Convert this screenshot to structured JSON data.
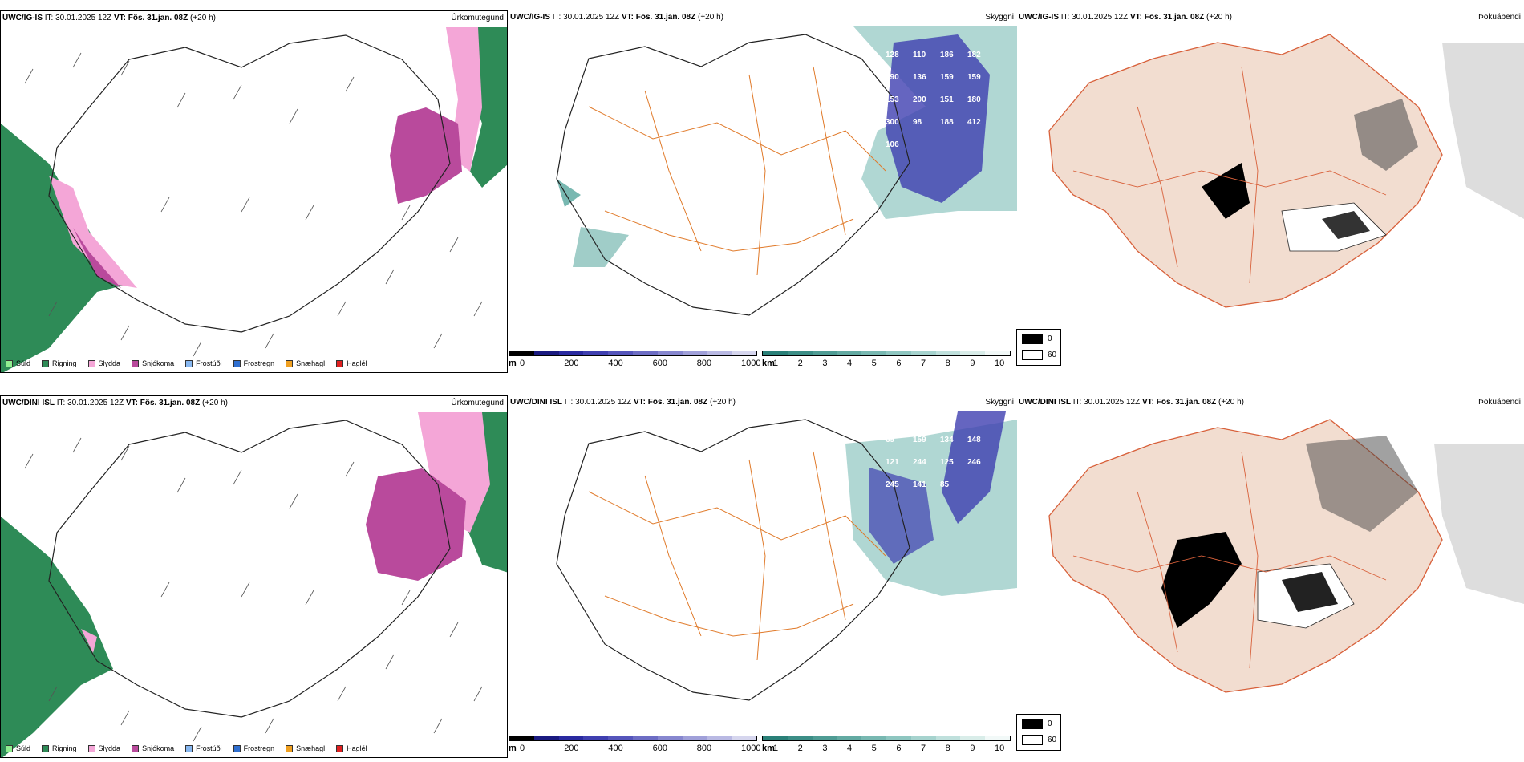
{
  "rows": [
    {
      "model": "UWC/IG-IS",
      "it_label": "IT:",
      "it_value": "30.01.2025 12Z",
      "vt_label": "VT:",
      "vt_value": "Fös. 31.jan. 08Z",
      "lead": "(+20 h)",
      "panels": [
        "Úrkomutegund",
        "Skyggni",
        "Þokuábendi"
      ],
      "visibility_numbers": [
        "128",
        "110",
        "186",
        "182",
        "190",
        "136",
        "159",
        "159",
        "153",
        "200",
        "151",
        "180",
        "300",
        "98",
        "188",
        "412",
        "106"
      ]
    },
    {
      "model": "UWC/DINI ISL",
      "it_label": "IT:",
      "it_value": "30.01.2025 12Z",
      "vt_label": "VT:",
      "vt_value": "Fös. 31.jan. 08Z",
      "lead": "(+20 h)",
      "panels": [
        "Úrkomutegund",
        "Skyggni",
        "Þokuábendi"
      ],
      "visibility_numbers": [
        "69",
        "159",
        "134",
        "148",
        "121",
        "244",
        "125",
        "246",
        "245",
        "141",
        "85"
      ]
    }
  ],
  "precip_legend": [
    {
      "label": "Súld",
      "color": "#90ee90"
    },
    {
      "label": "Rigning",
      "color": "#2e8b57"
    },
    {
      "label": "Slydda",
      "color": "#f4a6d7"
    },
    {
      "label": "Snjókoma",
      "color": "#b94a9c"
    },
    {
      "label": "Frostúði",
      "color": "#87b7f0"
    },
    {
      "label": "Frostregn",
      "color": "#2f6fd0"
    },
    {
      "label": "Snæhagl",
      "color": "#f0a020"
    },
    {
      "label": "Haglél",
      "color": "#e02020"
    }
  ],
  "ceiling_bar": {
    "unit": "m",
    "ticks": [
      "0",
      "200",
      "400",
      "600",
      "800",
      "1000"
    ],
    "colors": [
      "#000000",
      "#1a1a80",
      "#2a2aa0",
      "#3f3fb0",
      "#5555bb",
      "#6d6dc4",
      "#8787cf",
      "#a0a0d9",
      "#b9b9e3",
      "#d6d6ee"
    ]
  },
  "vis_bar": {
    "unit": "km",
    "ticks": [
      "1",
      "2",
      "3",
      "4",
      "5",
      "6",
      "7",
      "8",
      "9",
      "10"
    ],
    "colors": [
      "#2a8078",
      "#3c8e86",
      "#4f9c94",
      "#63aaa2",
      "#78b8b1",
      "#8ec6c0",
      "#a6d3ce",
      "#bfe0dc",
      "#d9ede9",
      "#f2f9f8"
    ]
  },
  "fog_legend": [
    {
      "value": "0",
      "color": "#000000"
    },
    {
      "value": "60",
      "color": "#ffffff"
    }
  ]
}
